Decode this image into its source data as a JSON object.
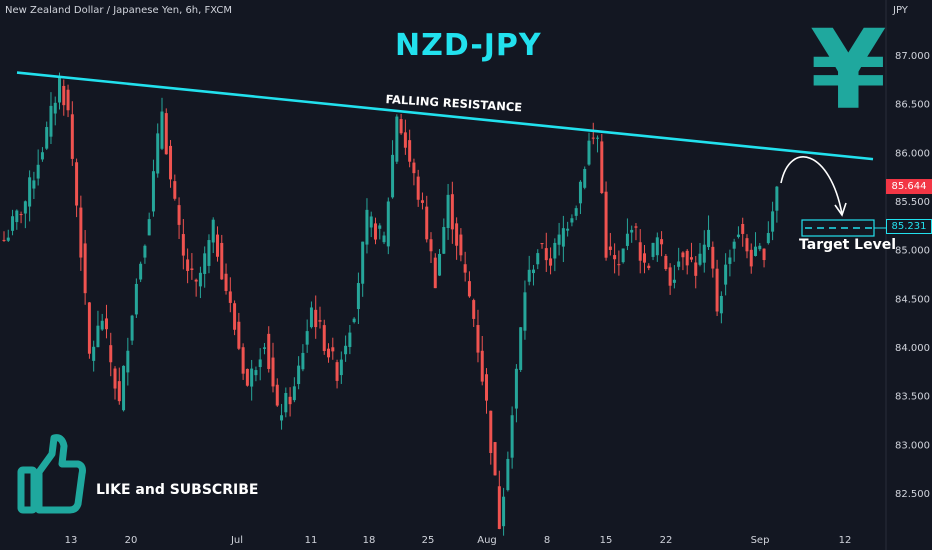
{
  "header": {
    "instrument": "New Zealand Dollar / Japanese Yen, 6h, FXCM",
    "currency": "JPY"
  },
  "annotations": {
    "title": "NZD-JPY",
    "yen_symbol": "¥",
    "falling_resistance": "FALLING RESISTANCE",
    "target_level": "Target Level",
    "like": "LIKE and SUBSCRIBE",
    "thumb_icon": "thumbs-up-icon"
  },
  "colors": {
    "background": "#131722",
    "up": "#26a69a",
    "down": "#ef5350",
    "accent": "#22e1ee",
    "yen": "#1fa89e"
  },
  "chart_data": {
    "type": "candlestick",
    "timeframe": "6h",
    "y_axis": {
      "ticks": [
        "87.000",
        "86.500",
        "86.000",
        "85.500",
        "85.000",
        "84.500",
        "84.000",
        "83.500",
        "83.000",
        "82.500"
      ],
      "ylim": [
        82.08,
        87.62
      ]
    },
    "x_axis": {
      "ticks": [
        "13",
        "20",
        "Jul",
        "11",
        "18",
        "25",
        "Aug",
        "8",
        "15",
        "22",
        "Sep",
        "12"
      ]
    },
    "last_price": "85.644",
    "target_price": "85.231",
    "resistance_line": {
      "start": 86.82,
      "end": 85.93
    },
    "anchors": [
      [
        0,
        85.1
      ],
      [
        5,
        85.5
      ],
      [
        10,
        86.2
      ],
      [
        13,
        86.75
      ],
      [
        15,
        86.4
      ],
      [
        18,
        85.0
      ],
      [
        20,
        83.9
      ],
      [
        23,
        84.3
      ],
      [
        27,
        83.4
      ],
      [
        30,
        84.4
      ],
      [
        34,
        85.4
      ],
      [
        37,
        86.45
      ],
      [
        39,
        85.7
      ],
      [
        42,
        84.9
      ],
      [
        45,
        84.6
      ],
      [
        49,
        85.2
      ],
      [
        53,
        84.4
      ],
      [
        57,
        83.6
      ],
      [
        61,
        84.1
      ],
      [
        64,
        83.3
      ],
      [
        68,
        83.55
      ],
      [
        72,
        84.4
      ],
      [
        75,
        84.05
      ],
      [
        78,
        83.75
      ],
      [
        82,
        84.4
      ],
      [
        85,
        85.3
      ],
      [
        89,
        85.1
      ],
      [
        92,
        86.4
      ],
      [
        95,
        85.9
      ],
      [
        98,
        85.4
      ],
      [
        101,
        84.7
      ],
      [
        104,
        85.5
      ],
      [
        107,
        84.9
      ],
      [
        110,
        84.3
      ],
      [
        113,
        83.4
      ],
      [
        116,
        82.2
      ],
      [
        119,
        83.3
      ],
      [
        122,
        84.6
      ],
      [
        125,
        85.0
      ],
      [
        128,
        84.9
      ],
      [
        131,
        85.2
      ],
      [
        134,
        85.5
      ],
      [
        137,
        86.1
      ],
      [
        139,
        86.15
      ],
      [
        141,
        85.0
      ],
      [
        144,
        84.8
      ],
      [
        147,
        85.3
      ],
      [
        150,
        84.8
      ],
      [
        153,
        85.1
      ],
      [
        156,
        84.7
      ],
      [
        159,
        85.0
      ],
      [
        162,
        84.8
      ],
      [
        165,
        85.1
      ],
      [
        167,
        84.4
      ],
      [
        170,
        85.0
      ],
      [
        172,
        85.2
      ],
      [
        175,
        84.9
      ],
      [
        178,
        85.0
      ],
      [
        181,
        85.65
      ]
    ]
  }
}
